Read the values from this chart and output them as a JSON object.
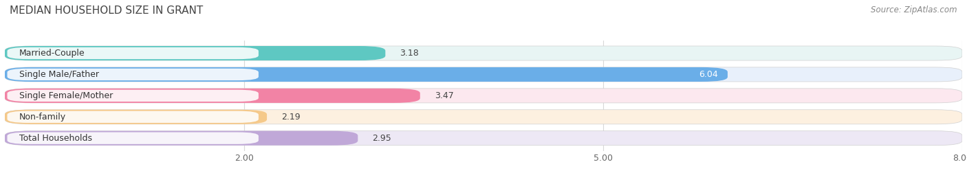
{
  "title": "MEDIAN HOUSEHOLD SIZE IN GRANT",
  "source": "Source: ZipAtlas.com",
  "categories": [
    "Married-Couple",
    "Single Male/Father",
    "Single Female/Mother",
    "Non-family",
    "Total Households"
  ],
  "values": [
    3.18,
    6.04,
    3.47,
    2.19,
    2.95
  ],
  "bar_colors": [
    "#5ec8c2",
    "#6aaee8",
    "#f283a5",
    "#f5c98a",
    "#c0a8d8"
  ],
  "bar_bg_colors": [
    "#e8f5f4",
    "#e8f0fb",
    "#fce8ef",
    "#fdf0e0",
    "#ede8f5"
  ],
  "xmin": 0,
  "xmax": 8.0,
  "xticks": [
    2.0,
    5.0,
    8.0
  ],
  "value_colors": [
    "#555555",
    "#ffffff",
    "#555555",
    "#555555",
    "#555555"
  ],
  "background_color": "#ffffff",
  "title_fontsize": 11,
  "tick_fontsize": 9,
  "label_fontsize": 9,
  "value_fontsize": 9
}
